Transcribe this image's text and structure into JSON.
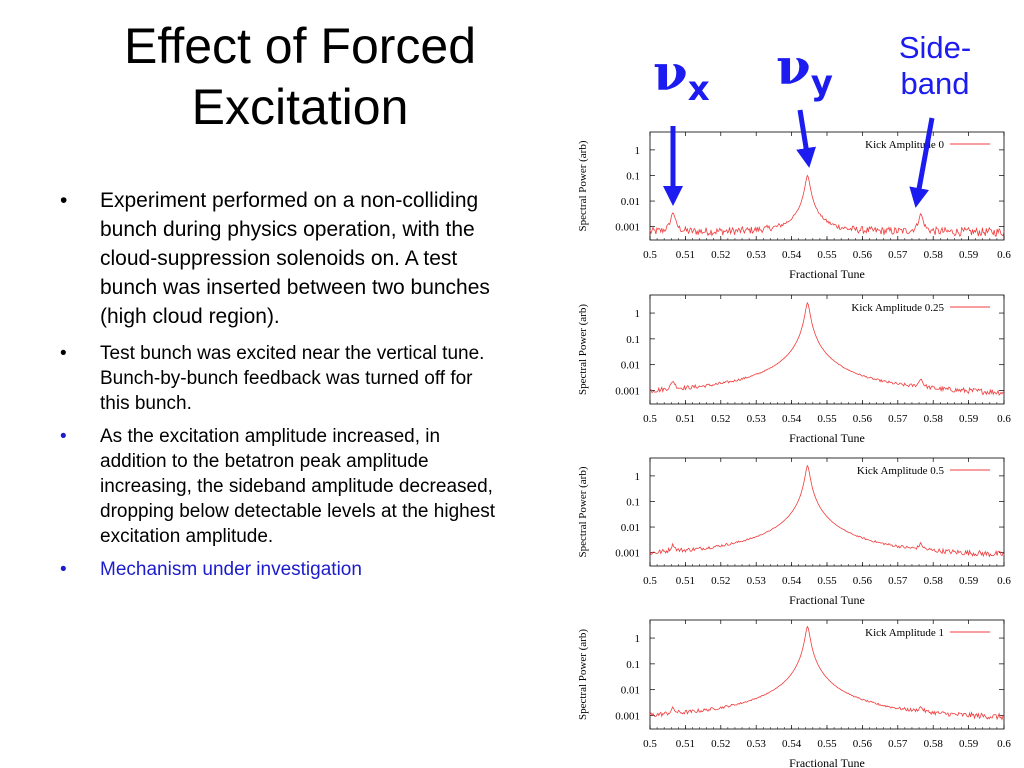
{
  "slide": {
    "title_lines": [
      "Effect of Forced",
      "Excitation"
    ],
    "bullets": [
      "Experiment performed on a non-colliding bunch during physics operation, with the cloud-suppression solenoids on.  A test bunch was inserted between two bunches (high cloud region).",
      " Test bunch was excited near the vertical tune.  Bunch-by-bunch feedback was turned off for this bunch.",
      " As the excitation amplitude increased, in addition to the betatron peak amplitude increasing, the sideband amplitude decreased, dropping below detectable levels at the highest excitation amplitude.",
      "Mechanism under investigation"
    ],
    "bullet_symbol": "•"
  },
  "annotations": {
    "nu_x": {
      "symbol": "ν",
      "sub": "x"
    },
    "nu_y": {
      "symbol": "ν",
      "sub": "y"
    },
    "sideband_lines": [
      "Side-",
      "band"
    ],
    "arrow_color": "#1c1cf0"
  },
  "colors": {
    "trace": "#f03c3c",
    "axis": "#000000",
    "highlight_text": "#1c1ccc"
  },
  "chart_data": [
    {
      "type": "line",
      "legend": "Kick Amplitude 0",
      "legend_position": "top-right",
      "xlabel": "Fractional Tune",
      "ylabel": "Spectral Power (arb)",
      "xlim": [
        0.5,
        0.6
      ],
      "ylim": [
        0.0003,
        5
      ],
      "y_scale": "log",
      "x_ticks": [
        "0.5",
        "0.51",
        "0.52",
        "0.53",
        "0.54",
        "0.55",
        "0.56",
        "0.57",
        "0.58",
        "0.59",
        "0.6"
      ],
      "y_ticks": [
        "1",
        "0.1",
        "0.01",
        "0.001"
      ],
      "baseline": 0.0006,
      "peaks": [
        {
          "x": 0.5065,
          "y": 0.003
        },
        {
          "x": 0.5445,
          "y": 0.1
        },
        {
          "x": 0.5765,
          "y": 0.0025
        }
      ]
    },
    {
      "type": "line",
      "legend": "Kick Amplitude 0.25",
      "legend_position": "top-right",
      "xlabel": "Fractional Tune",
      "ylabel": "Spectral Power (arb)",
      "xlim": [
        0.5,
        0.6
      ],
      "ylim": [
        0.0003,
        5
      ],
      "y_scale": "log",
      "x_ticks": [
        "0.5",
        "0.51",
        "0.52",
        "0.53",
        "0.54",
        "0.55",
        "0.56",
        "0.57",
        "0.58",
        "0.59",
        "0.6"
      ],
      "y_ticks": [
        "1",
        "0.1",
        "0.01",
        "0.001"
      ],
      "baseline": 0.0006,
      "peaks": [
        {
          "x": 0.5065,
          "y": 0.0012
        },
        {
          "x": 0.5445,
          "y": 2.5
        },
        {
          "x": 0.5765,
          "y": 0.0015
        }
      ]
    },
    {
      "type": "line",
      "legend": "Kick Amplitude 0.5",
      "legend_position": "top-right",
      "xlabel": "Fractional Tune",
      "ylabel": "Spectral Power (arb)",
      "xlim": [
        0.5,
        0.6
      ],
      "ylim": [
        0.0003,
        5
      ],
      "y_scale": "log",
      "x_ticks": [
        "0.5",
        "0.51",
        "0.52",
        "0.53",
        "0.54",
        "0.55",
        "0.56",
        "0.57",
        "0.58",
        "0.59",
        "0.6"
      ],
      "y_ticks": [
        "1",
        "0.1",
        "0.01",
        "0.001"
      ],
      "baseline": 0.0006,
      "peaks": [
        {
          "x": 0.5065,
          "y": 0.0009
        },
        {
          "x": 0.5445,
          "y": 2.5
        },
        {
          "x": 0.5765,
          "y": 0.0009
        }
      ]
    },
    {
      "type": "line",
      "legend": "Kick Amplitude 1",
      "legend_position": "top-right",
      "xlabel": "Fractional Tune",
      "ylabel": "Spectral Power (arb)",
      "xlim": [
        0.5,
        0.6
      ],
      "ylim": [
        0.0003,
        5
      ],
      "y_scale": "log",
      "x_ticks": [
        "0.5",
        "0.51",
        "0.52",
        "0.53",
        "0.54",
        "0.55",
        "0.56",
        "0.57",
        "0.58",
        "0.59",
        "0.6"
      ],
      "y_ticks": [
        "1",
        "0.1",
        "0.01",
        "0.001"
      ],
      "baseline": 0.0006,
      "peaks": [
        {
          "x": 0.5065,
          "y": 0.0007
        },
        {
          "x": 0.5445,
          "y": 2.8
        },
        {
          "x": 0.5765,
          "y": 0.0007
        }
      ]
    }
  ]
}
